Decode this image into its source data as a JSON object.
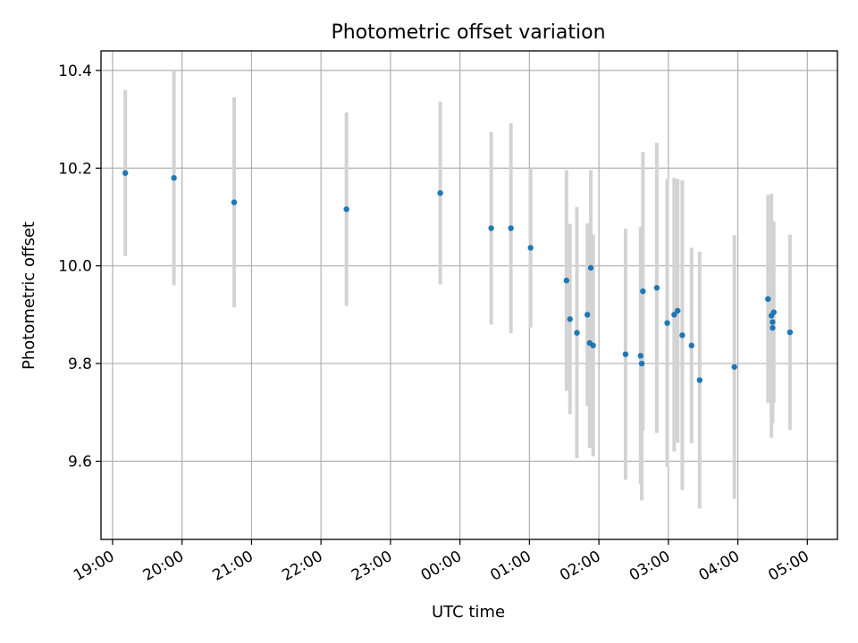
{
  "chart_data": {
    "type": "scatter",
    "title": "Photometric offset variation",
    "xlabel": "UTC time",
    "ylabel": "Photometric offset",
    "x_ticks": [
      "19:00",
      "20:00",
      "21:00",
      "22:00",
      "23:00",
      "00:00",
      "01:00",
      "02:00",
      "03:00",
      "04:00",
      "05:00"
    ],
    "y_ticks": [
      "9.6",
      "9.8",
      "10.0",
      "10.2",
      "10.4"
    ],
    "xlim": [
      "18:50",
      "05:26"
    ],
    "ylim": [
      9.44,
      10.44
    ],
    "grid": true,
    "colors": {
      "point": "#1f77b4",
      "errorbar": "#d3d3d3",
      "grid": "#b0b0b0"
    },
    "series": [
      {
        "points": [
          {
            "x": "19:11",
            "y": 10.19,
            "err": 0.17
          },
          {
            "x": "19:53",
            "y": 10.18,
            "err": 0.22
          },
          {
            "x": "20:45",
            "y": 10.13,
            "err": 0.215
          },
          {
            "x": "22:22",
            "y": 10.116,
            "err": 0.198
          },
          {
            "x": "23:43",
            "y": 10.149,
            "err": 0.187
          },
          {
            "x": "00:27",
            "y": 10.077,
            "err": 0.197
          },
          {
            "x": "00:44",
            "y": 10.077,
            "err": 0.215
          },
          {
            "x": "01:01",
            "y": 10.037,
            "err": 0.163
          },
          {
            "x": "01:32",
            "y": 9.97,
            "err": 0.226
          },
          {
            "x": "01:35",
            "y": 9.891,
            "err": 0.195
          },
          {
            "x": "01:41",
            "y": 9.863,
            "err": 0.257
          },
          {
            "x": "01:50",
            "y": 9.9,
            "err": 0.187
          },
          {
            "x": "01:52",
            "y": 9.842,
            "err": 0.215
          },
          {
            "x": "01:53",
            "y": 9.996,
            "err": 0.2
          },
          {
            "x": "01:55",
            "y": 9.837,
            "err": 0.227
          },
          {
            "x": "02:23",
            "y": 9.819,
            "err": 0.257
          },
          {
            "x": "02:36",
            "y": 9.816,
            "err": 0.263
          },
          {
            "x": "02:37",
            "y": 9.8,
            "err": 0.28
          },
          {
            "x": "02:38",
            "y": 9.948,
            "err": 0.285
          },
          {
            "x": "02:50",
            "y": 9.955,
            "err": 0.297
          },
          {
            "x": "02:59",
            "y": 9.883,
            "err": 0.295
          },
          {
            "x": "03:05",
            "y": 9.9,
            "err": 0.28
          },
          {
            "x": "03:08",
            "y": 9.908,
            "err": 0.27
          },
          {
            "x": "03:12",
            "y": 9.858,
            "err": 0.317
          },
          {
            "x": "03:20",
            "y": 9.837,
            "err": 0.2
          },
          {
            "x": "03:27",
            "y": 9.766,
            "err": 0.263
          },
          {
            "x": "03:57",
            "y": 9.793,
            "err": 0.27
          },
          {
            "x": "04:26",
            "y": 9.932,
            "err": 0.213
          },
          {
            "x": "04:29",
            "y": 9.898,
            "err": 0.25
          },
          {
            "x": "04:30",
            "y": 9.873,
            "err": 0.18
          },
          {
            "x": "04:30",
            "y": 9.885,
            "err": 0.207
          },
          {
            "x": "04:31",
            "y": 9.905,
            "err": 0.185
          },
          {
            "x": "04:45",
            "y": 9.864,
            "err": 0.2
          }
        ]
      }
    ]
  }
}
